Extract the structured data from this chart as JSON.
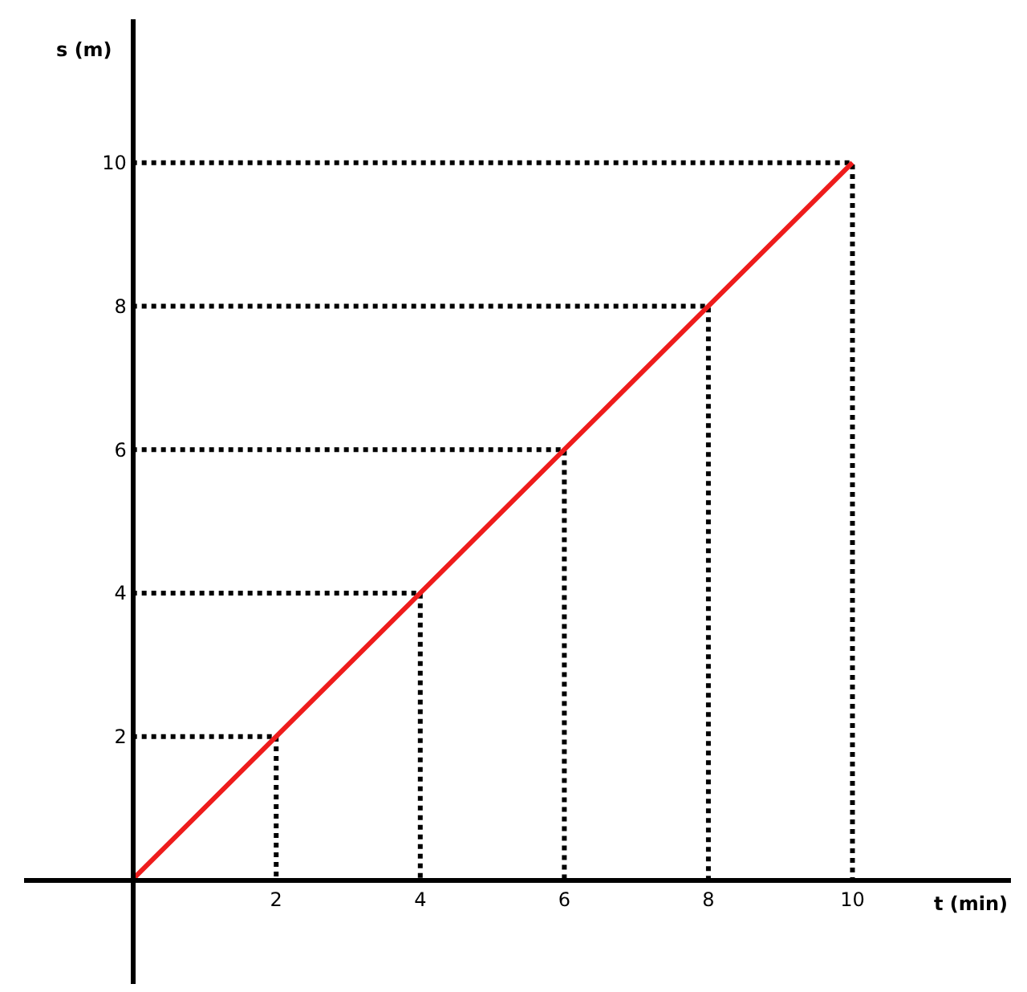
{
  "chart_data": {
    "type": "line",
    "xlabel": "t (min)",
    "ylabel": "s (m)",
    "x": [
      0,
      2,
      4,
      6,
      8,
      10
    ],
    "series": [
      {
        "color": "#000000",
        "x": [
          0,
          2,
          2
        ],
        "values": [
          2,
          2,
          0
        ],
        "line_style": "dotted"
      },
      {
        "color": "#000000",
        "x": [
          0,
          4,
          4
        ],
        "values": [
          4,
          4,
          0
        ],
        "line_style": "dotted"
      },
      {
        "color": "#000000",
        "x": [
          0,
          6,
          6
        ],
        "values": [
          6,
          6,
          0
        ],
        "line_style": "dotted"
      },
      {
        "color": "#000000",
        "x": [
          0,
          8,
          8
        ],
        "values": [
          8,
          8,
          0
        ],
        "line_style": "dotted"
      },
      {
        "color": "#000000",
        "x": [
          0,
          10,
          10
        ],
        "values": [
          10,
          10,
          0
        ],
        "line_style": "dotted"
      },
      {
        "color": "#ee1c1c",
        "values": [
          0,
          2,
          4,
          6,
          8,
          10
        ]
      }
    ],
    "xlim": [
      -1.5,
      12.2
    ],
    "ylim": [
      -1.45,
      12
    ],
    "xticks": [
      2,
      4,
      6,
      8,
      10
    ],
    "yticks": [
      2,
      4,
      6,
      8,
      10
    ],
    "marker": "none",
    "line_style": "solid"
  }
}
